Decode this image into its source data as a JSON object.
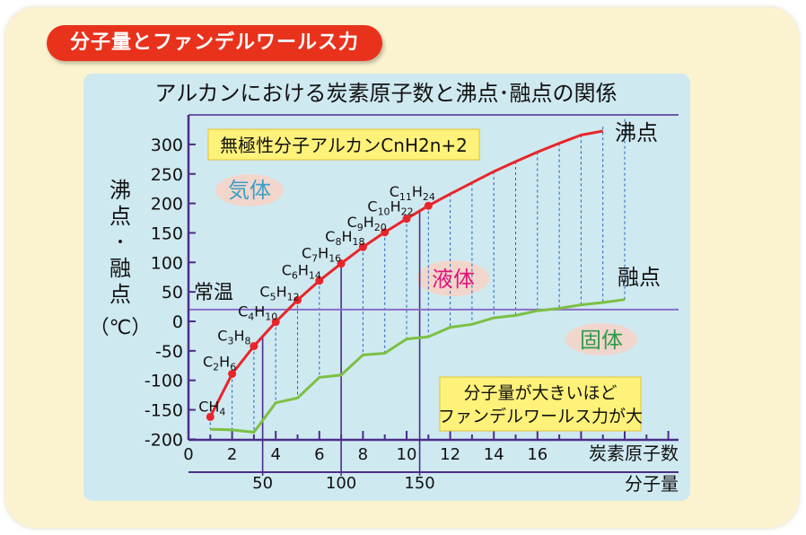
{
  "header": {
    "tag": "分子量とファンデルワールス力",
    "title": "アルカンにおける炭素原子数と沸点･融点の関係"
  },
  "colors": {
    "boiling": "#e8252a",
    "melting": "#7cc043",
    "frame": "#4b2d8a",
    "room_temp_line": "#8a6cc8",
    "gas_oval": "#f2d6cc",
    "phase_gas": "#3aa0c8",
    "phase_liquid": "#e0157a",
    "phase_solid": "#2e9a4a",
    "box_bg": "#fff27a"
  },
  "labels": {
    "formula_box": "無極性分子アルカンCnH2n+2",
    "gas": "気体",
    "liquid": "液体",
    "solid": "固体",
    "room_temp": "常温",
    "y_label_chars": [
      "沸",
      "点",
      "･",
      "融",
      "点"
    ],
    "y_unit": "（℃）",
    "boiling_label": "沸点",
    "melting_label": "融点",
    "note_line1": "分子量が大きいほど",
    "note_line2": "ファンデルワールス力が大",
    "x_label": "炭素原子数",
    "x2_label": "分子量"
  },
  "chart_data": {
    "type": "line",
    "title": "アルカンにおける炭素原子数と沸点･融点の関係",
    "xlabel": "炭素原子数",
    "x2label": "分子量",
    "ylabel": "沸点･融点（℃）",
    "x": [
      1,
      2,
      3,
      4,
      5,
      6,
      7,
      8,
      9,
      10,
      11,
      12,
      13,
      14,
      15,
      16,
      17,
      18,
      19,
      20
    ],
    "xlim": [
      0,
      20
    ],
    "ylim": [
      -200,
      310
    ],
    "xticks": [
      "0",
      "2",
      "4",
      "6",
      "8",
      "10",
      "12",
      "14",
      "16"
    ],
    "yticks": [
      "-200",
      "-150",
      "-100",
      "-50",
      "0",
      "50",
      "100",
      "150",
      "200",
      "250",
      "300"
    ],
    "x2ticks": [
      {
        "label": "50",
        "carbon": 3.4
      },
      {
        "label": "100",
        "carbon": 7
      },
      {
        "label": "150",
        "carbon": 10.6
      }
    ],
    "series": [
      {
        "name": "沸点",
        "values": [
          -162,
          -89,
          -42,
          -1,
          36,
          69,
          98,
          126,
          151,
          174,
          196,
          216,
          235,
          254,
          271,
          287,
          302,
          316,
          330,
          343
        ]
      },
      {
        "name": "融点",
        "values": [
          -183,
          -184,
          -188,
          -138,
          -130,
          -95,
          -91,
          -57,
          -54,
          -30,
          -26,
          -10,
          -5,
          6,
          10,
          18,
          22,
          28,
          32,
          37
        ]
      }
    ],
    "room_temperature": 20,
    "formula_labels": [
      {
        "c": 1,
        "text": "CH4"
      },
      {
        "c": 2,
        "text": "C2H6"
      },
      {
        "c": 3,
        "text": "C3H8"
      },
      {
        "c": 4,
        "text": "C4H10"
      },
      {
        "c": 5,
        "text": "C5H12"
      },
      {
        "c": 6,
        "text": "C6H14"
      },
      {
        "c": 7,
        "text": "C7H16"
      },
      {
        "c": 8,
        "text": "C8H18"
      },
      {
        "c": 9,
        "text": "C9H20"
      },
      {
        "c": 10,
        "text": "C10H22"
      },
      {
        "c": 11,
        "text": "C11H24"
      }
    ]
  }
}
